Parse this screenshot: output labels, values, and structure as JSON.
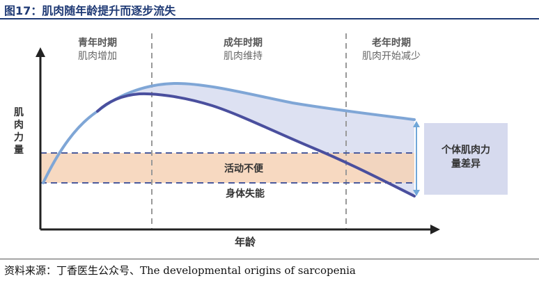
{
  "figure": {
    "title": "图17：肌肉随年龄提升而逐步流失",
    "source": "资料来源：丁香医生公众号、The developmental origins of sarcopenia"
  },
  "diagram": {
    "y_axis_label": [
      "肌",
      "肉",
      "力",
      "量"
    ],
    "x_axis_label": "年龄",
    "stages": [
      {
        "name": "青年时期",
        "desc": "肌肉增加"
      },
      {
        "name": "成年时期",
        "desc": "肌肉维持"
      },
      {
        "name": "老年时期",
        "desc": "肌肉开始减少"
      }
    ],
    "band_label": "活动不便",
    "threshold_label": "身体失能",
    "difference_box": [
      "个体肌肉力",
      "量差异"
    ],
    "colors": {
      "upper_curve": "#7fa6d6",
      "lower_curve": "#4a4f9e",
      "gap_fill": "#dde1f2",
      "band_fill": "#f6d2b6",
      "dashed": "#4a5a9c",
      "box_fill": "#d6daee",
      "title": "#1f3a75"
    }
  }
}
